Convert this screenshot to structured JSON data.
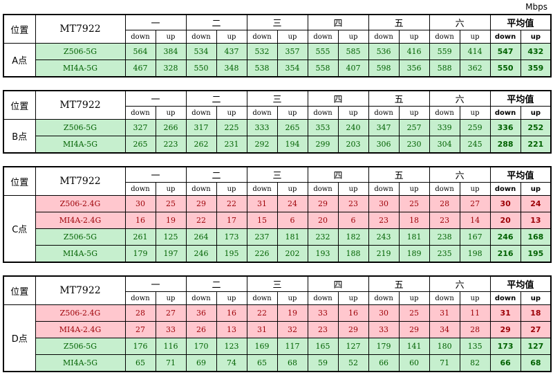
{
  "unit": "Mbps",
  "tables": [
    {
      "position_header": "位置",
      "model": "MT7922",
      "days": [
        "一",
        "二",
        "三",
        "四",
        "五",
        "六"
      ],
      "avg": "平均值",
      "subheaders": [
        "down",
        "up",
        "down",
        "up",
        "down",
        "up",
        "down",
        "up",
        "down",
        "up",
        "down",
        "up",
        "down",
        "up"
      ],
      "position": "A点",
      "rows": [
        {
          "name": "Z506-5G",
          "color": "#c6efce",
          "values": [
            564,
            384,
            534,
            437,
            532,
            357,
            555,
            585,
            536,
            416,
            559,
            414,
            547,
            432
          ]
        },
        {
          "name": "MI4A-5G",
          "color": "#c6efce",
          "values": [
            467,
            328,
            550,
            348,
            538,
            354,
            558,
            407,
            598,
            356,
            588,
            362,
            550,
            359
          ]
        }
      ]
    },
    {
      "position_header": "位置",
      "model": "MT7922",
      "days": [
        "一",
        "二",
        "三",
        "四",
        "五",
        "六"
      ],
      "avg": "平均值",
      "subheaders": [
        "down",
        "up",
        "down",
        "up",
        "down",
        "up",
        "down",
        "up",
        "down",
        "up",
        "down",
        "up",
        "down",
        "up"
      ],
      "position": "B点",
      "rows": [
        {
          "name": "Z506-5G",
          "color": "#c6efce",
          "values": [
            327,
            266,
            317,
            225,
            333,
            265,
            353,
            240,
            347,
            257,
            339,
            259,
            336,
            252
          ]
        },
        {
          "name": "MI4A-5G",
          "color": "#c6efce",
          "values": [
            265,
            223,
            262,
            231,
            292,
            194,
            299,
            203,
            306,
            230,
            304,
            245,
            288,
            221
          ]
        }
      ]
    },
    {
      "position_header": "位置",
      "model": "MT7922",
      "days": [
        "一",
        "二",
        "三",
        "四",
        "五",
        "六"
      ],
      "avg": "平均值",
      "subheaders": [
        "down",
        "up",
        "down",
        "up",
        "down",
        "up",
        "down",
        "up",
        "down",
        "up",
        "down",
        "up",
        "down",
        "up"
      ],
      "position": "C点",
      "rows": [
        {
          "name": "Z506-2.4G",
          "color": "#ffc7ce",
          "values": [
            30,
            25,
            29,
            22,
            31,
            24,
            29,
            23,
            30,
            25,
            28,
            27,
            30,
            24
          ]
        },
        {
          "name": "MI4A-2.4G",
          "color": "#ffc7ce",
          "values": [
            16,
            19,
            22,
            17,
            15,
            6,
            20,
            6,
            23,
            18,
            23,
            14,
            20,
            13
          ]
        },
        {
          "name": "Z506-5G",
          "color": "#c6efce",
          "values": [
            261,
            125,
            264,
            173,
            237,
            181,
            232,
            182,
            243,
            181,
            238,
            167,
            246,
            168
          ]
        },
        {
          "name": "MI4A-5G",
          "color": "#c6efce",
          "values": [
            179,
            197,
            246,
            195,
            226,
            202,
            193,
            188,
            219,
            189,
            235,
            198,
            216,
            195
          ]
        }
      ]
    },
    {
      "position_header": "位置",
      "model": "MT7922",
      "days": [
        "一",
        "二",
        "三",
        "四",
        "五",
        "六"
      ],
      "avg": "平均值",
      "subheaders": [
        "down",
        "up",
        "down",
        "up",
        "down",
        "up",
        "down",
        "up",
        "down",
        "up",
        "down",
        "up",
        "down",
        "up"
      ],
      "position": "D点",
      "rows": [
        {
          "name": "Z506-2.4G",
          "color": "#ffc7ce",
          "values": [
            28,
            27,
            36,
            16,
            22,
            19,
            33,
            16,
            30,
            25,
            31,
            11,
            31,
            18
          ]
        },
        {
          "name": "MI4A-2.4G",
          "color": "#ffc7ce",
          "values": [
            27,
            33,
            26,
            13,
            31,
            32,
            23,
            29,
            33,
            29,
            34,
            28,
            29,
            27
          ]
        },
        {
          "name": "Z506-5G",
          "color": "#c6efce",
          "values": [
            176,
            116,
            170,
            123,
            169,
            117,
            165,
            127,
            179,
            141,
            180,
            135,
            173,
            127
          ]
        },
        {
          "name": "MI4A-5G",
          "color": "#c6efce",
          "values": [
            65,
            71,
            69,
            74,
            65,
            68,
            59,
            52,
            66,
            60,
            71,
            82,
            66,
            68
          ]
        }
      ]
    }
  ]
}
